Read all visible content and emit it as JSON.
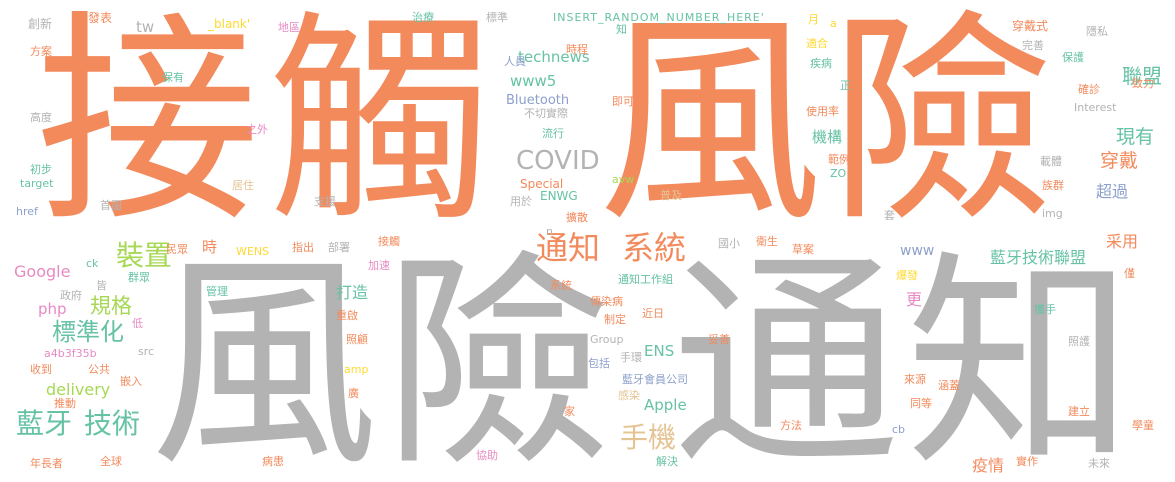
{
  "title": "Word cloud",
  "palette": {
    "orange": "#f28a5c",
    "grey": "#b3b3b3",
    "green": "#66c2a5",
    "blue": "#8da0cb",
    "pink": "#e78ac3",
    "lime": "#a6d854",
    "yellow": "#ffd92f",
    "tan": "#e5c494"
  },
  "words": [
    "接觸",
    "風險",
    "風險",
    "通知",
    "通知",
    "系統",
    "裝置",
    "藍牙",
    "技術",
    "手機",
    "COVID",
    "標準化",
    "規格",
    "聯盟",
    "現有",
    "穿戴",
    "超過",
    "機構",
    "采用",
    "藍牙技術聯盟",
    "疫情",
    "打造",
    "Google",
    "delivery",
    "technews",
    "www5",
    "Apple",
    "ENS",
    "www",
    "Bluetooth",
    "php",
    "tw",
    "更",
    "時",
    "創新",
    "發表",
    "_blank'",
    "地區",
    "治療",
    "標準",
    "INSERT_RANDOM_NUMBER_HERE'",
    "月",
    "知",
    "穿戴式",
    "隱私",
    "方案",
    "時程",
    "適合",
    "完善",
    "保有",
    "人員",
    "疾病",
    "保護",
    "致力",
    "即可",
    "正",
    "確診",
    "高度",
    "不切實際",
    "使用率",
    "Interest",
    "之外",
    "流行",
    "範例",
    "載體",
    "初步",
    "target",
    "居住",
    "Special",
    "avw",
    "ENWG",
    "ZO",
    "族群",
    "href",
    "首圖",
    "支援",
    "用於",
    "擴散",
    "普及",
    "套",
    "img",
    "n",
    "民眾",
    "WENS",
    "指出",
    "部署",
    "接觸",
    "國小",
    "衛生",
    "草案",
    "ck",
    "加速",
    "群眾",
    "皆",
    "政府",
    "管理",
    "系統",
    "傳染病",
    "通知工作組",
    "爆發",
    "僅",
    "低",
    "攜手",
    "重啟",
    "制定",
    "近日",
    "src",
    "a4b3f35b",
    "照顧",
    "Group",
    "妥善",
    "照護",
    "收到",
    "公共",
    "包括",
    "手環",
    "嵌入",
    "amp",
    "藍牙會員公司",
    "來源",
    "涵蓋",
    "推動",
    "家",
    "感染",
    "同等",
    "建立",
    "廣",
    "方法",
    "cb",
    "學童",
    "年長者",
    "全球",
    "病患",
    "協助",
    "解決",
    "實作",
    "未來",
    "a"
  ]
}
